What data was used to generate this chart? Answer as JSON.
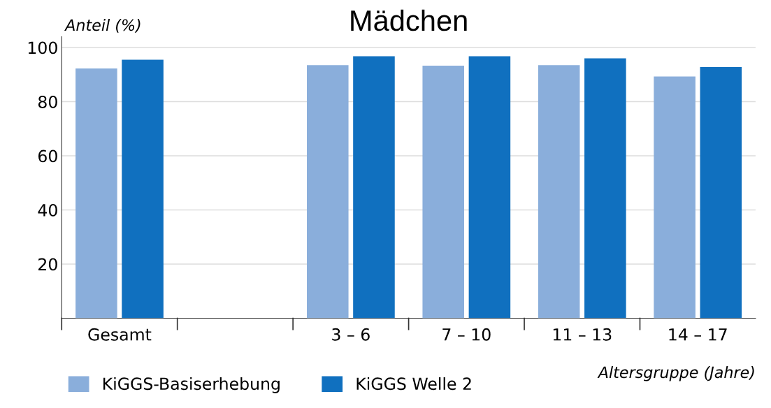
{
  "chart_data": {
    "type": "bar",
    "title": "Mädchen",
    "ylabel": "Anteil (%)",
    "xlabel": "Altersgruppe (Jahre)",
    "categories": [
      "Gesamt",
      null,
      "3 – 6",
      "7 – 10",
      "11 – 13",
      "14 – 17"
    ],
    "series": [
      {
        "name": "KiGGS-Basiserhebung",
        "color": "#8aaedb",
        "values": [
          92.3,
          null,
          93.5,
          93.3,
          93.5,
          89.3
        ]
      },
      {
        "name": "KiGGS Welle 2",
        "color": "#1070bf",
        "values": [
          95.5,
          null,
          96.8,
          96.8,
          96.0,
          92.8
        ]
      }
    ],
    "ylim": [
      0,
      104
    ],
    "yticks": [
      20,
      40,
      60,
      80,
      100
    ],
    "grid": "y",
    "legend": "bottom left"
  }
}
